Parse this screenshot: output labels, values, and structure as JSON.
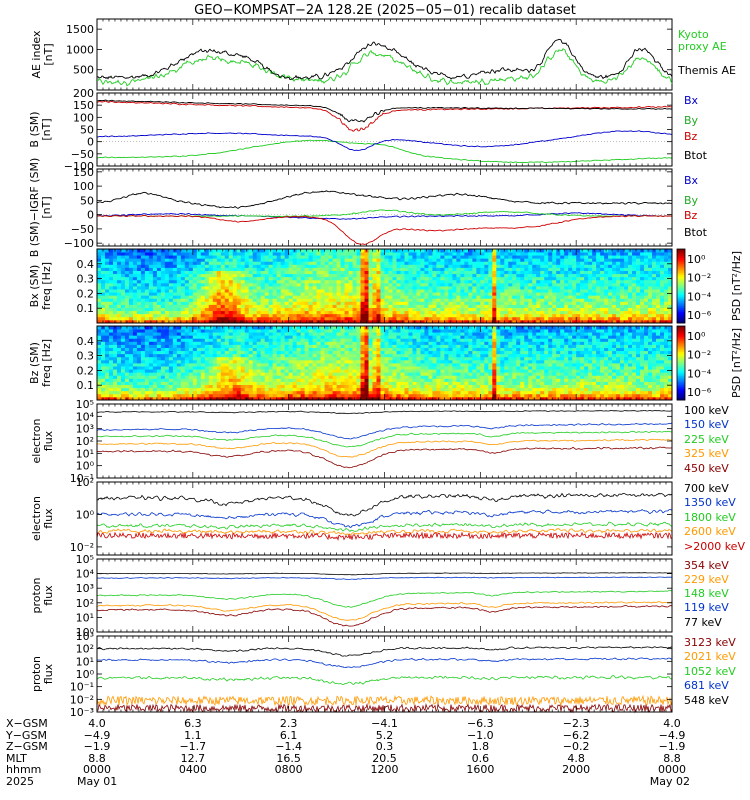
{
  "chart_data": {
    "type": "line",
    "title": "GEO−KOMPSAT−2A 128.2E (2025−05−01) recalib dataset",
    "x": {
      "start": "0000",
      "end": "0000",
      "unit": "hhmm"
    },
    "panels": [
      {
        "id": "ae",
        "ylabel": [
          "AE index",
          "[nT]"
        ],
        "yticks": [
          "500",
          "1000",
          "1500"
        ],
        "legend": [
          {
            "name": "Kyoto",
            "color": "#22cc22"
          },
          {
            "name": "proxy AE",
            "color": "#22cc22"
          },
          {
            "name": "Themis AE",
            "color": "#000000"
          }
        ]
      },
      {
        "id": "bsm",
        "ylabel": [
          "B (SM)",
          "[nT]"
        ],
        "yticks": [
          "200",
          "150",
          "100",
          "50",
          "0",
          "−50",
          "−100"
        ],
        "legend": [
          {
            "name": "Bx",
            "color": "#0000cc"
          },
          {
            "name": "By",
            "color": "#22aa22"
          },
          {
            "name": "Bz",
            "color": "#cc0000"
          },
          {
            "name": "Btot",
            "color": "#000000"
          }
        ]
      },
      {
        "id": "bdiff",
        "ylabel": [
          "B (SM)−IGRF (SM)",
          "[nT]"
        ],
        "yticks": [
          "150",
          "100",
          "50",
          "0",
          "−50",
          "−100"
        ],
        "legend": [
          {
            "name": "Bx",
            "color": "#0000cc"
          },
          {
            "name": "By",
            "color": "#22aa22"
          },
          {
            "name": "Bz",
            "color": "#cc0000"
          },
          {
            "name": "Btot",
            "color": "#000000"
          }
        ]
      },
      {
        "id": "bxspec",
        "ylabel": [
          "Bx (SM)",
          "freq [Hz]"
        ],
        "yticks": [
          "0.4",
          "0.3",
          "0.2",
          "0.1"
        ],
        "colorbar": {
          "label": "PSD [nT²/Hz]",
          "ticks": [
            "10⁰",
            "10⁻²",
            "10⁻⁴",
            "10⁻⁶"
          ]
        }
      },
      {
        "id": "bzspec",
        "ylabel": [
          "Bz (SM)",
          "freq [Hz]"
        ],
        "yticks": [
          "0.4",
          "0.3",
          "0.2",
          "0.1"
        ],
        "colorbar": {
          "label": "PSD [nT²/Hz]",
          "ticks": [
            "10⁰",
            "10⁻²",
            "10⁻⁴",
            "10⁻⁶"
          ]
        }
      },
      {
        "id": "elow",
        "ylabel": [
          "electron",
          "flux"
        ],
        "yticks": [
          "10⁵",
          "10⁴",
          "10³",
          "10²",
          "10¹",
          "10⁰",
          "10⁻¹"
        ],
        "legend": [
          {
            "name": "100 keV",
            "color": "#000000"
          },
          {
            "name": "150 keV",
            "color": "#0033cc"
          },
          {
            "name": "225 keV",
            "color": "#22cc22"
          },
          {
            "name": "325 keV",
            "color": "#ff9900"
          },
          {
            "name": "450 keV",
            "color": "#880000"
          }
        ]
      },
      {
        "id": "ehigh",
        "ylabel": [
          "electron",
          "flux"
        ],
        "yticks": [
          "10²",
          "10⁰",
          "10⁻²"
        ],
        "legend": [
          {
            "name": "700 keV",
            "color": "#000000"
          },
          {
            "name": "1350 keV",
            "color": "#0033cc"
          },
          {
            "name": "1800 keV",
            "color": "#22cc22"
          },
          {
            "name": "2600 keV",
            "color": "#ff9900"
          },
          {
            "name": ">2000 keV",
            "color": "#cc0000"
          }
        ]
      },
      {
        "id": "plow",
        "ylabel": [
          "proton",
          "flux"
        ],
        "yticks": [
          "10⁵",
          "10⁴",
          "10³",
          "10²",
          "10¹",
          "10⁰"
        ],
        "legend": [
          {
            "name": "354 keV",
            "color": "#880000"
          },
          {
            "name": "229 keV",
            "color": "#ff9900"
          },
          {
            "name": "148 keV",
            "color": "#22cc22"
          },
          {
            "name": "119 keV",
            "color": "#0033cc"
          },
          {
            "name": "77 keV",
            "color": "#000000"
          }
        ]
      },
      {
        "id": "phigh",
        "ylabel": [
          "proton",
          "flux"
        ],
        "yticks": [
          "10³",
          "10²",
          "10¹",
          "10⁰",
          "10⁻¹",
          "10⁻²",
          "10⁻³"
        ],
        "legend": [
          {
            "name": "3123 keV",
            "color": "#880000"
          },
          {
            "name": "2021 keV",
            "color": "#ff9900"
          },
          {
            "name": "1052 keV",
            "color": "#22cc22"
          },
          {
            "name": "681 keV",
            "color": "#0033cc"
          },
          {
            "name": "548 keV",
            "color": "#000000"
          }
        ]
      }
    ],
    "footer": {
      "row_labels": [
        "X−GSM",
        "Y−GSM",
        "Z−GSM",
        "MLT",
        "hhmm",
        "2025"
      ],
      "columns": [
        [
          "4.0",
          "−4.9",
          "−1.9",
          "8.8",
          "0000",
          "May 01"
        ],
        [
          "6.3",
          "1.1",
          "−1.7",
          "12.7",
          "0400",
          ""
        ],
        [
          "2.3",
          "6.1",
          "−1.4",
          "16.5",
          "0800",
          ""
        ],
        [
          "−4.1",
          "5.2",
          "0.3",
          "20.5",
          "1200",
          ""
        ],
        [
          "−6.3",
          "−1.0",
          "1.8",
          "0.6",
          "1600",
          ""
        ],
        [
          "−2.3",
          "−6.2",
          "−0.2",
          "4.8",
          "2000",
          ""
        ],
        [
          "4.0",
          "−4.9",
          "−1.9",
          "8.8",
          "0000",
          "May 02"
        ]
      ]
    }
  }
}
